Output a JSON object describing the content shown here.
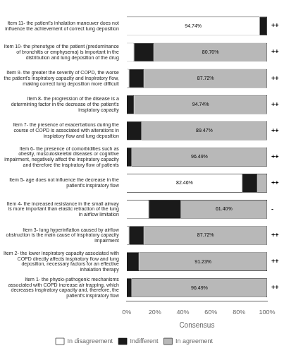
{
  "chart_data": {
    "type": "bar",
    "orientation": "horizontal",
    "stacked": true,
    "categories": [
      "Item 11- the patient's inhalation maneuver does not\ninfluence the achievement of correct lung deposition",
      "Item 10- the phenotype of the patient (predominance\nof bronchitis or emphysema) is important in the\ndistribution and lung deposition of the drug",
      "Item 9- the greater the severity of COPD, the worse\nthe patient's inspiratory capacity and inspiratory flow,\nmaking correct lung deposition more difficult",
      "Item 8- the progression of the disease is a\ndetermining factor in the decrease of the patient's\ninspiatory capacity",
      "Item 7- the presence of exacerbations during the\ncourse of COPD is associated with alterations in\ninspiatory flow and lung deposition",
      "Item 6- the presence of comorbidities such as\nobesity, musculoskeletal diseases or cognitive\nimpairment, negatively affect the inspiratory capacity\nand therefore the inspiratory flow of patients",
      "Item 5- age does not influence the decrease in the\npatient's inspiratory flow",
      "Item 4- the increased resistance in the small airway\nis more important than elastic retraction of the lung\nin airflow limitation",
      "Item 3- lung hyperinflation caused by airflow\nobstruction is the main cause of inspiratory capacity\nimpairment",
      "Item 2- the lower inspiratory capacity associated with\nCOPD directly affects inspiratory flow and lung\ndeposition, necessary factors for an effective\ninhalation therapy",
      "Item 1- the physio-pathogenic mechanisms\nassociated with COPD increase air trapping, which\ndecreases inspiratory capacity and, therefore, the\npatient's inspiratory flow"
    ],
    "series": [
      {
        "name": "In disagreement",
        "color": "#ffffff",
        "values": [
          94.74,
          5.26,
          1.75,
          0.0,
          0.0,
          0.0,
          82.46,
          15.79,
          1.75,
          0.0,
          0.0
        ],
        "value_labels": [
          "94.74%",
          null,
          null,
          null,
          null,
          null,
          "82.46%",
          null,
          null,
          null,
          null
        ]
      },
      {
        "name": "Indifferent",
        "color": "#1a1a1a",
        "values": [
          5.26,
          14.04,
          10.53,
          5.26,
          10.53,
          3.51,
          10.53,
          22.81,
          10.53,
          8.77,
          3.51
        ],
        "value_labels": [
          null,
          null,
          null,
          null,
          null,
          null,
          null,
          null,
          null,
          null,
          null
        ]
      },
      {
        "name": "In agreement",
        "color": "#b8b8b8",
        "values": [
          0.0,
          80.7,
          87.72,
          94.74,
          89.47,
          96.49,
          7.01,
          61.4,
          87.72,
          91.23,
          96.49
        ],
        "value_labels": [
          null,
          "80.70%",
          "87.72%",
          "94.74%",
          "89.47%",
          "96.49%",
          null,
          "61.40%",
          "87.72%",
          "91.23%",
          "96.49%"
        ]
      }
    ],
    "data_labels": true,
    "annotations": [
      "++",
      "++",
      "++",
      "++",
      "++",
      "++",
      "++",
      "-",
      "++",
      "++",
      "++"
    ],
    "xlabel": "Consensus",
    "xlim": [
      0,
      100
    ],
    "xticks": [
      {
        "value": 0,
        "label": "0%"
      },
      {
        "value": 20,
        "label": "20%"
      },
      {
        "value": 40,
        "label": "40%"
      },
      {
        "value": 60,
        "label": "60%"
      },
      {
        "value": 80,
        "label": "80%"
      },
      {
        "value": 100,
        "label": "100%"
      }
    ],
    "grid": false,
    "legend": "bottom"
  }
}
